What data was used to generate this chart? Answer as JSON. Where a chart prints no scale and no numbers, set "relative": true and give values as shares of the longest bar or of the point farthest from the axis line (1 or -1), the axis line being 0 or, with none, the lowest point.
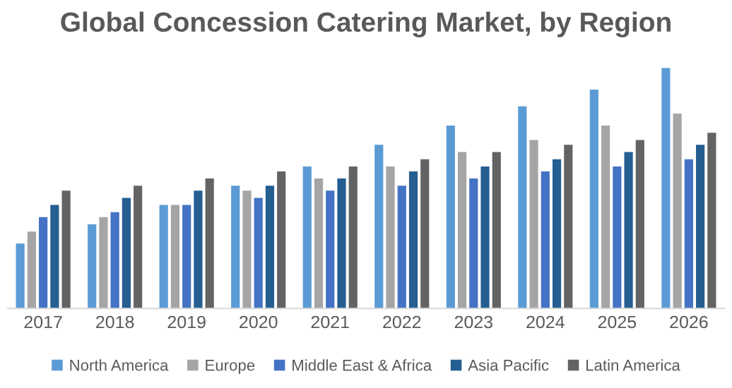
{
  "chart_data": {
    "type": "bar",
    "title": "Global Concession Catering Market, by Region",
    "relative": true,
    "legend": "bottom",
    "grid": false,
    "categories": [
      "2017",
      "2018",
      "2019",
      "2020",
      "2021",
      "2022",
      "2023",
      "2024",
      "2025",
      "2026"
    ],
    "series": [
      {
        "name": "North America",
        "color": "#5b9bd5",
        "values": [
          0.27,
          0.35,
          0.43,
          0.51,
          0.59,
          0.68,
          0.76,
          0.84,
          0.91,
          1.0
        ]
      },
      {
        "name": "Europe",
        "color": "#a5a5a5",
        "values": [
          0.32,
          0.38,
          0.43,
          0.49,
          0.54,
          0.59,
          0.65,
          0.7,
          0.76,
          0.81
        ]
      },
      {
        "name": "Middle East & Africa",
        "color": "#4472c4",
        "values": [
          0.38,
          0.4,
          0.43,
          0.46,
          0.49,
          0.51,
          0.54,
          0.57,
          0.59,
          0.62
        ]
      },
      {
        "name": "Asia Pacific",
        "color": "#255e91",
        "values": [
          0.43,
          0.46,
          0.49,
          0.51,
          0.54,
          0.57,
          0.59,
          0.62,
          0.65,
          0.68
        ]
      },
      {
        "name": "Latin America",
        "color": "#636363",
        "values": [
          0.49,
          0.51,
          0.54,
          0.57,
          0.59,
          0.62,
          0.65,
          0.68,
          0.7,
          0.73
        ]
      }
    ]
  }
}
